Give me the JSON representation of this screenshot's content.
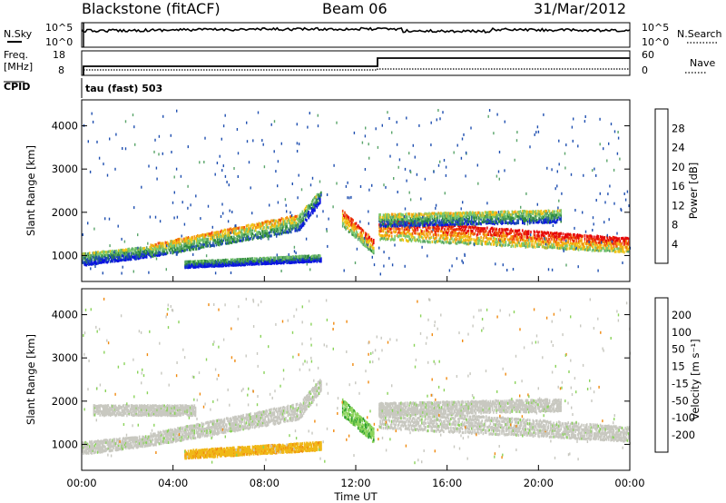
{
  "header": {
    "station": "Blackstone (fitACF)",
    "beam": "Beam 06",
    "date": "31/Mar/2012"
  },
  "noise_panel": {
    "left_label": "N.Sky",
    "right_label": "N.Search",
    "y_ticks": [
      "10^5",
      "10^0"
    ],
    "right_ticks": [
      "10^5",
      "10^0"
    ]
  },
  "freq_panel": {
    "left_label_1": "Freq.",
    "left_label_2": "[MHz]",
    "right_label": "Nave",
    "left_ticks": [
      "18",
      "8"
    ],
    "right_ticks": [
      "60",
      "0"
    ],
    "cpid_label": "CPID",
    "cpid_text": "tau (fast) 503"
  },
  "colors": {
    "power_scale": [
      "#0a14e0",
      "#1f4fb0",
      "#2f8a3c",
      "#5aa56a",
      "#7cc96d",
      "#f0c419",
      "#f59a0f",
      "#f0500f",
      "#e60a0a"
    ],
    "velocity_scale": [
      "#2b3aa8",
      "#2e6e4a",
      "#2ea02e",
      "#8ad35a",
      "#c8c8c0",
      "#f0b818",
      "#f08a10",
      "#e04810",
      "#e00a0a"
    ],
    "echo_power_grey": "#c8c8c0"
  },
  "chart_data": [
    {
      "type": "heatmap",
      "name": "power",
      "ylabel": "Slant Range [km]",
      "y_ticks": [
        "1000",
        "2000",
        "3000",
        "4000"
      ],
      "ylim": [
        400,
        4600
      ],
      "x_ticks": [
        "00:00",
        "04:00",
        "08:00",
        "12:00",
        "16:00",
        "20:00",
        "00:00"
      ],
      "xlim_hours": [
        0,
        24
      ],
      "colorbar_label": "Power [dB]",
      "colorbar_ticks": [
        "4",
        "8",
        "12",
        "16",
        "20",
        "24",
        "28"
      ],
      "bands": [
        {
          "t0": 0.0,
          "t1": 3.0,
          "r0": 800,
          "r1": 1100,
          "r0e": 1000,
          "r1e": 1250,
          "level": 0.35
        },
        {
          "t0": 3.0,
          "t1": 9.5,
          "r0": 1000,
          "r1": 1300,
          "r0e": 1600,
          "r1e": 2000,
          "level": 0.55
        },
        {
          "t0": 9.5,
          "t1": 10.5,
          "r0": 1600,
          "r1": 2000,
          "r0e": 2300,
          "r1e": 2600,
          "level": 0.35
        },
        {
          "t0": 4.5,
          "t1": 10.5,
          "r0": 750,
          "r1": 900,
          "r0e": 900,
          "r1e": 1050,
          "level": 0.25
        },
        {
          "t0": 11.4,
          "t1": 12.8,
          "r0": 1700,
          "r1": 2100,
          "r0e": 1050,
          "r1e": 1400,
          "level": 0.75
        },
        {
          "t0": 13.0,
          "t1": 24.0,
          "r0": 1400,
          "r1": 1900,
          "r0e": 1100,
          "r1e": 1450,
          "level": 0.85
        },
        {
          "t0": 13.0,
          "t1": 21.0,
          "r0": 1700,
          "r1": 2000,
          "r0e": 1800,
          "r1e": 2100,
          "level": 0.45
        }
      ]
    },
    {
      "type": "heatmap",
      "name": "velocity",
      "ylabel": "Slant Range [km]",
      "y_ticks": [
        "1000",
        "2000",
        "3000",
        "4000"
      ],
      "ylim": [
        400,
        4600
      ],
      "x_ticks": [
        "00:00",
        "04:00",
        "08:00",
        "12:00",
        "16:00",
        "20:00",
        "00:00"
      ],
      "xlabel": "Time UT",
      "colorbar_label": "Velocity [m s⁻¹]",
      "colorbar_ticks": [
        "200",
        "100",
        "50",
        "15",
        "-15",
        "-50",
        "-100",
        "-200"
      ],
      "bands": [
        {
          "t0": 0.0,
          "t1": 3.0,
          "r0": 800,
          "r1": 1100,
          "r0e": 1000,
          "r1e": 1250,
          "v": 0
        },
        {
          "t0": 3.0,
          "t1": 9.5,
          "r0": 1000,
          "r1": 1300,
          "r0e": 1600,
          "r1e": 2000,
          "v": 0
        },
        {
          "t0": 0.5,
          "t1": 5.0,
          "r0": 1700,
          "r1": 1950,
          "r0e": 1700,
          "r1e": 1950,
          "v": 0
        },
        {
          "t0": 9.5,
          "t1": 10.5,
          "r0": 1600,
          "r1": 2000,
          "r0e": 2300,
          "r1e": 2600,
          "v": 0
        },
        {
          "t0": 4.5,
          "t1": 10.5,
          "r0": 700,
          "r1": 900,
          "r0e": 900,
          "r1e": 1100,
          "v": -60
        },
        {
          "t0": 11.4,
          "t1": 12.8,
          "r0": 1700,
          "r1": 2100,
          "r0e": 1050,
          "r1e": 1400,
          "v": 40
        },
        {
          "t0": 13.0,
          "t1": 24.0,
          "r0": 1400,
          "r1": 1900,
          "r0e": 1100,
          "r1e": 1450,
          "v": 0
        },
        {
          "t0": 13.0,
          "t1": 21.0,
          "r0": 1700,
          "r1": 2000,
          "r0e": 1800,
          "r1e": 2100,
          "v": 0
        }
      ]
    }
  ]
}
